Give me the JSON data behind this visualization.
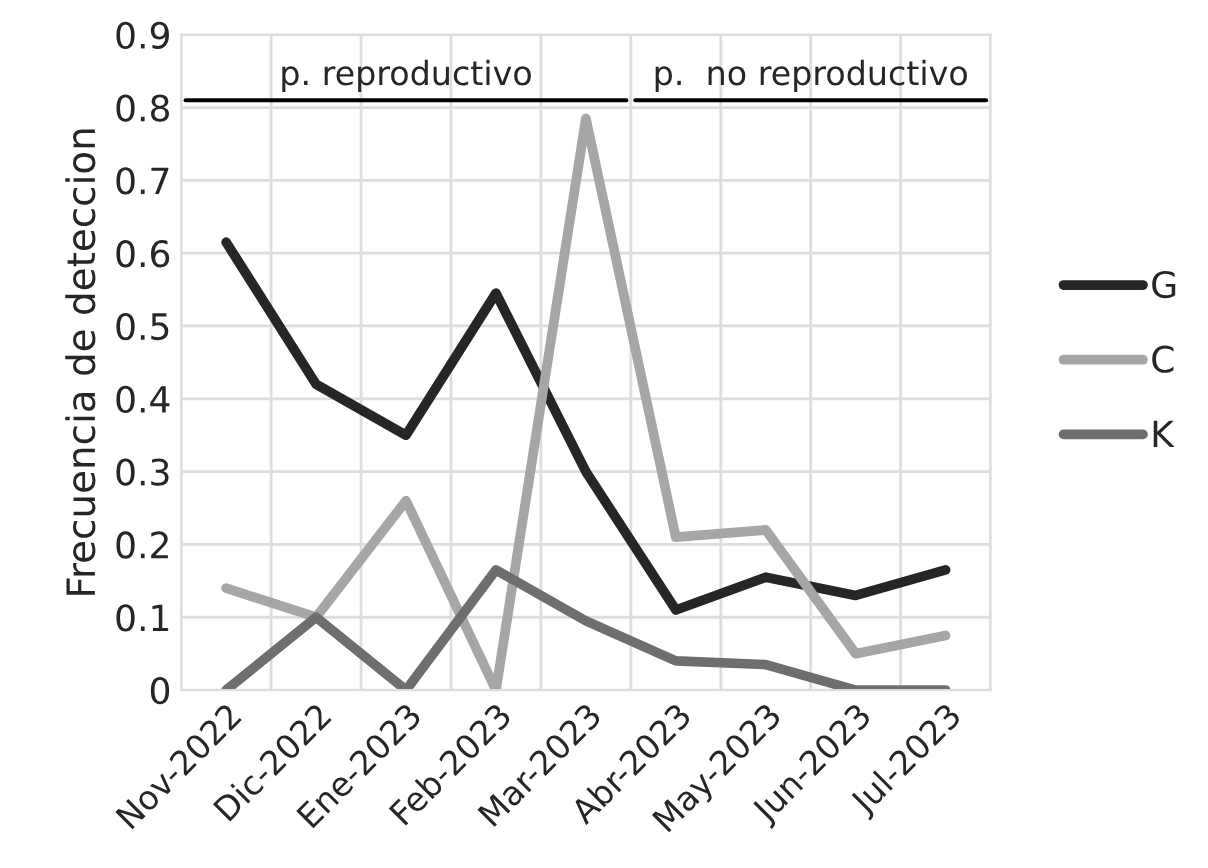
{
  "chart_data": {
    "type": "line",
    "ylabel": "Frecuencia de deteccion",
    "categories": [
      "Nov-2022",
      "Dic-2022",
      "Ene-2023",
      "Feb-2023",
      "Mar-2023",
      "Abr-2023",
      "May-2023",
      "Jun-2023",
      "Jul-2023"
    ],
    "series": [
      {
        "name": "G",
        "color": "#262626",
        "values": [
          0.615,
          0.42,
          0.35,
          0.545,
          0.3,
          0.11,
          0.155,
          0.13,
          0.165
        ]
      },
      {
        "name": "C",
        "color": "#a6a6a6",
        "values": [
          0.14,
          0.1,
          0.26,
          0.0,
          0.785,
          0.21,
          0.22,
          0.05,
          0.075
        ]
      },
      {
        "name": "K",
        "color": "#6e6e6e",
        "values": [
          0.0,
          0.1,
          0.0,
          0.165,
          0.095,
          0.04,
          0.035,
          0.0,
          0.0
        ]
      }
    ],
    "annotations": [
      "p. reproductivo",
      "p.  no reproductivo"
    ],
    "ylim": [
      0,
      0.9
    ],
    "yticks": [
      0,
      0.1,
      0.2,
      0.3,
      0.4,
      0.5,
      0.6,
      0.7,
      0.8,
      0.9
    ],
    "grid": true,
    "legend": "right",
    "marker": "none",
    "line_style": "solid"
  }
}
